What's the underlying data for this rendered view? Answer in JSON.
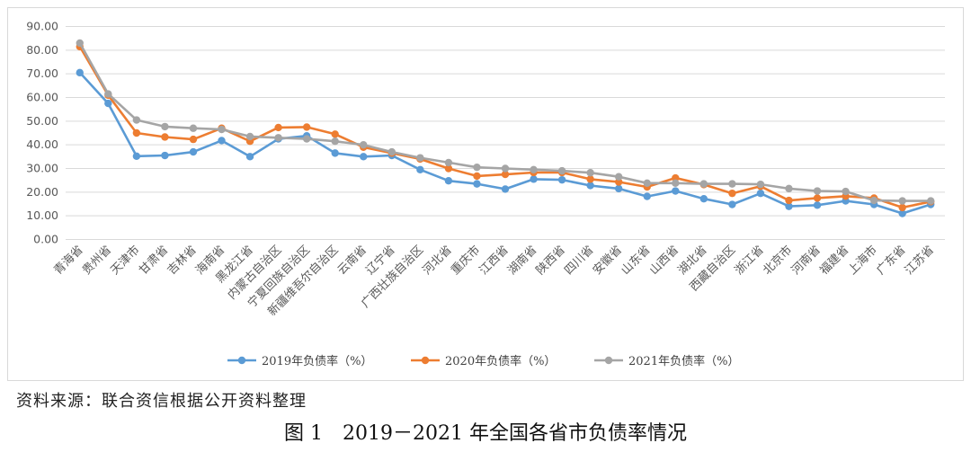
{
  "chart_data": {
    "type": "line",
    "title": "",
    "xlabel": "",
    "ylabel": "",
    "ylim": [
      0,
      90
    ],
    "y_ticks": [
      "0.00",
      "10.00",
      "20.00",
      "30.00",
      "40.00",
      "50.00",
      "60.00",
      "70.00",
      "80.00",
      "90.00"
    ],
    "grid": true,
    "legend_position": "bottom",
    "categories": [
      "青海省",
      "贵州省",
      "天津市",
      "甘肃省",
      "吉林省",
      "海南省",
      "黑龙江省",
      "内蒙古自治区",
      "宁夏回族自治区",
      "新疆维吾尔自治区",
      "云南省",
      "辽宁省",
      "广西壮族自治区",
      "河北省",
      "重庆市",
      "江西省",
      "湖南省",
      "陕西省",
      "四川省",
      "安徽省",
      "山东省",
      "山西省",
      "湖北省",
      "西藏自治区",
      "浙江省",
      "北京市",
      "河南省",
      "福建省",
      "上海市",
      "广东省",
      "江苏省"
    ],
    "series": [
      {
        "name": "2019年负债率（%）",
        "color": "#5b9bd5",
        "values": [
          70.5,
          57.5,
          35.2,
          35.5,
          37.0,
          41.8,
          35.0,
          42.5,
          43.8,
          36.5,
          35.0,
          35.5,
          29.5,
          24.8,
          23.5,
          21.3,
          25.5,
          25.2,
          22.8,
          21.5,
          18.2,
          20.5,
          17.2,
          14.8,
          19.5,
          14.0,
          14.5,
          16.3,
          14.8,
          11.0,
          14.8
        ]
      },
      {
        "name": "2020年负债率（%）",
        "color": "#ed7d31",
        "values": [
          81.5,
          61.0,
          45.0,
          43.3,
          42.3,
          47.0,
          41.5,
          47.3,
          47.5,
          44.5,
          39.0,
          36.5,
          34.0,
          30.0,
          26.8,
          27.5,
          28.3,
          28.3,
          25.5,
          24.3,
          22.2,
          26.0,
          23.2,
          19.5,
          22.5,
          16.5,
          17.5,
          18.3,
          17.5,
          13.5,
          16.0
        ]
      },
      {
        "name": "2021年负债率（%）",
        "color": "#a5a5a5",
        "values": [
          83.0,
          61.5,
          50.5,
          47.7,
          47.0,
          46.5,
          43.5,
          43.0,
          42.5,
          41.5,
          40.0,
          37.0,
          34.5,
          32.5,
          30.5,
          30.0,
          29.5,
          29.0,
          28.2,
          26.5,
          23.8,
          23.8,
          23.5,
          23.5,
          23.3,
          21.5,
          20.5,
          20.3,
          16.5,
          16.3,
          16.3
        ]
      }
    ]
  },
  "source_note": "资料来源：联合资信根据公开资料整理",
  "figure_caption": "图 1　2019－2021 年全国各省市负债率情况"
}
